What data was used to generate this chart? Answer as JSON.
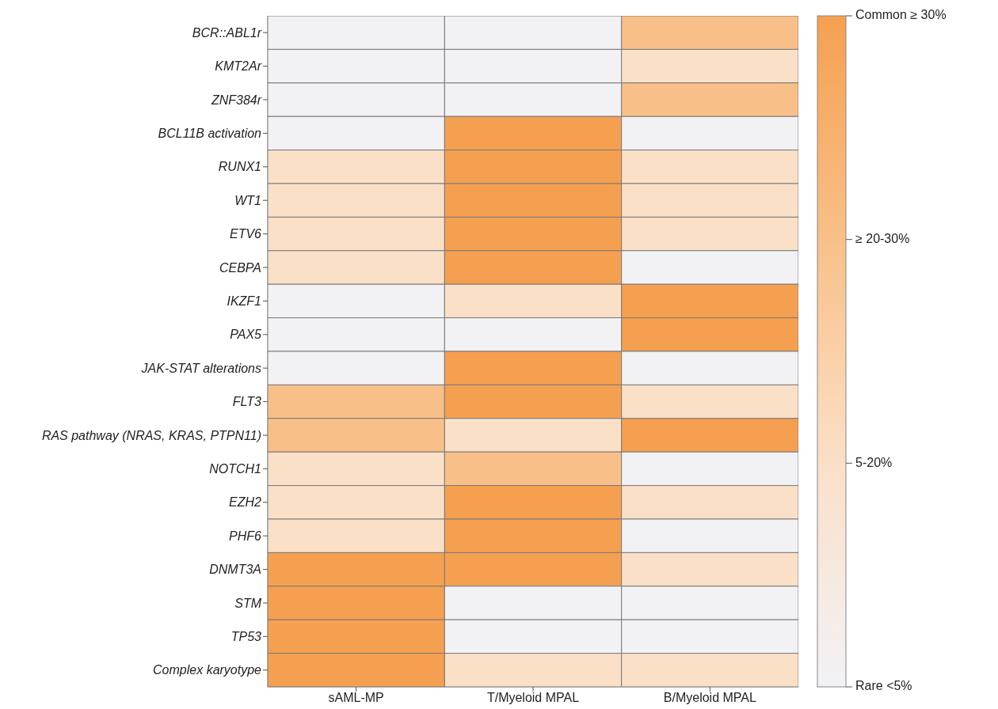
{
  "chart_data": {
    "type": "heatmap",
    "categories": [
      "sAML-MP",
      "T/Myeloid MPAL",
      "B/Myeloid MPAL"
    ],
    "y_categories": [
      "BCR::ABL1r",
      "KMT2Ar",
      "ZNF384r",
      "BCL11B activation",
      "RUNX1",
      "WT1",
      "ETV6",
      "CEBPA",
      "IKZF1",
      "PAX5",
      "JAK-STAT alterations",
      "FLT3",
      "RAS pathway (NRAS, KRAS, PTPN11)",
      "NOTCH1",
      "EZH2",
      "PHF6",
      "DNMT3A",
      "STM",
      "TP53",
      "Complex karyotype"
    ],
    "cells": [
      [
        0,
        0,
        2
      ],
      [
        0,
        0,
        1
      ],
      [
        0,
        0,
        2
      ],
      [
        0,
        3,
        0
      ],
      [
        1,
        3,
        1
      ],
      [
        1,
        3,
        1
      ],
      [
        1,
        3,
        1
      ],
      [
        1,
        3,
        0
      ],
      [
        0,
        1,
        3
      ],
      [
        0,
        0,
        3
      ],
      [
        0,
        3,
        0
      ],
      [
        2,
        3,
        1
      ],
      [
        2,
        1,
        3
      ],
      [
        1,
        2,
        0
      ],
      [
        1,
        3,
        1
      ],
      [
        1,
        3,
        0
      ],
      [
        3,
        3,
        1
      ],
      [
        3,
        0,
        0
      ],
      [
        3,
        0,
        0
      ],
      [
        3,
        1,
        1
      ]
    ],
    "clim": [
      0,
      3
    ],
    "cticks": [
      {
        "value": 0,
        "label": "Rare <5%"
      },
      {
        "value": 1,
        "label": "5-20%"
      },
      {
        "value": 2,
        "label": "≥ 20-30%"
      },
      {
        "value": 3,
        "label": "Common ≥ 30%"
      }
    ]
  }
}
